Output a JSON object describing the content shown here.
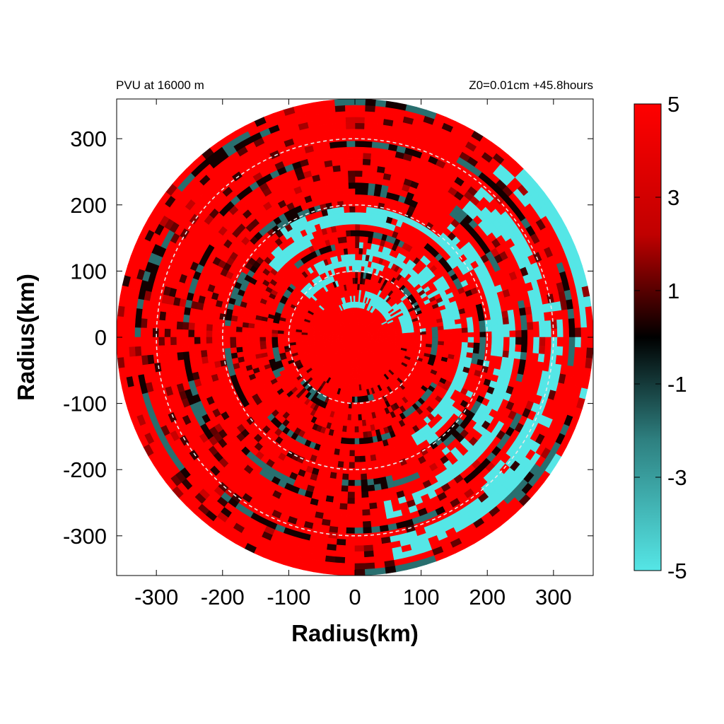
{
  "chart_data": {
    "type": "heatmap",
    "projection": "polar",
    "title_left": "PVU at 16000 m",
    "title_right": "Z0=0.01cm  +45.8hours",
    "xlabel": "Radius(km)",
    "ylabel": "Radius(km)",
    "xlim": [
      -360,
      360
    ],
    "ylim": [
      -360,
      360
    ],
    "x_ticks": [
      -300,
      -200,
      -100,
      0,
      100,
      200,
      300
    ],
    "y_ticks": [
      300,
      200,
      100,
      0,
      -100,
      -200,
      -300
    ],
    "max_radius_km": 360,
    "reference_circles_km": [
      100,
      200,
      300
    ],
    "colorbar": {
      "range": [
        -5,
        5
      ],
      "ticks": [
        5,
        3,
        1,
        -1,
        -3,
        -5
      ],
      "colors": {
        "max": "#ff0000",
        "zero": "#000000",
        "min": "#55e6e6"
      }
    },
    "field_summary": {
      "dominant": "positive PVU (red, about +5) across most of the domain, including the inner core",
      "negative_regions": [
        {
          "description": "cyan band along northern-northwestern inner ring",
          "radius_km": [
            40,
            200
          ],
          "azimuth_deg": [
            5,
            140
          ],
          "value": -5
        },
        {
          "description": "cyan spiral bands on eastern side",
          "radius_km": [
            160,
            360
          ],
          "azimuth_deg": [
            -60,
            50
          ],
          "value": -5
        },
        {
          "description": "cyan patches in south-southeast",
          "radius_km": [
            250,
            340
          ],
          "azimuth_deg": [
            -80,
            -30
          ],
          "value": -5
        }
      ]
    }
  }
}
